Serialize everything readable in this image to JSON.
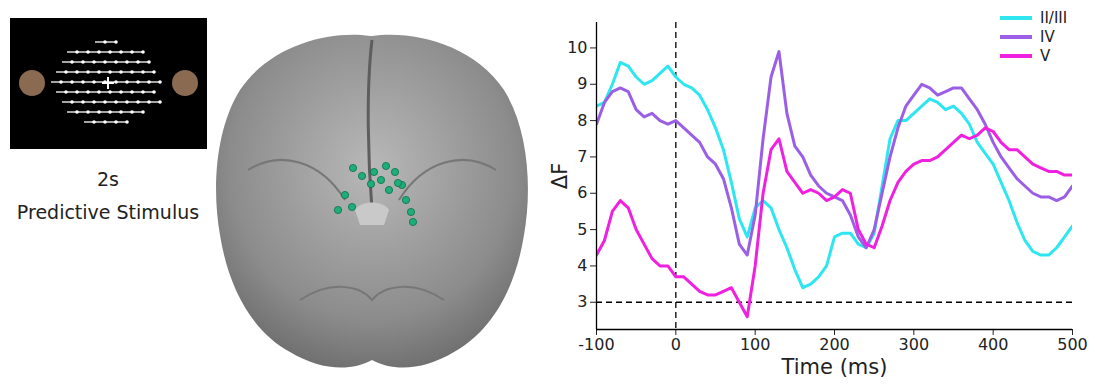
{
  "panels": {
    "stimulus": {
      "caption": [
        "2s",
        "Predictive Stimulus"
      ]
    }
  },
  "chart_data": {
    "type": "line",
    "x_label": "Time (ms)",
    "y_label": "ΔF",
    "x": [
      -100,
      -90,
      -80,
      -70,
      -60,
      -50,
      -40,
      -30,
      -20,
      -10,
      0,
      10,
      20,
      30,
      40,
      50,
      60,
      70,
      80,
      90,
      100,
      110,
      120,
      130,
      140,
      150,
      160,
      170,
      180,
      190,
      200,
      210,
      220,
      230,
      240,
      250,
      260,
      270,
      280,
      290,
      300,
      310,
      320,
      330,
      340,
      350,
      360,
      370,
      380,
      390,
      400,
      410,
      420,
      430,
      440,
      450,
      460,
      470,
      480,
      490,
      500
    ],
    "series": [
      {
        "name": "II/III",
        "color": "#2ee6f0",
        "values": [
          8.4,
          8.5,
          9.0,
          9.6,
          9.5,
          9.2,
          9.0,
          9.1,
          9.3,
          9.5,
          9.2,
          9.0,
          8.9,
          8.7,
          8.3,
          7.8,
          7.2,
          6.3,
          5.3,
          4.8,
          5.6,
          5.8,
          5.6,
          5.0,
          4.5,
          3.9,
          3.4,
          3.5,
          3.7,
          4.0,
          4.8,
          4.9,
          4.9,
          4.6,
          4.5,
          4.9,
          6.2,
          7.5,
          8.0,
          8.0,
          8.2,
          8.4,
          8.6,
          8.5,
          8.3,
          8.4,
          8.2,
          7.9,
          7.4,
          7.1,
          6.8,
          6.3,
          5.8,
          5.2,
          4.7,
          4.4,
          4.3,
          4.3,
          4.5,
          4.8,
          5.1
        ]
      },
      {
        "name": "IV",
        "color": "#9b5fe6",
        "values": [
          7.9,
          8.5,
          8.8,
          8.9,
          8.8,
          8.3,
          8.1,
          8.2,
          8.0,
          7.9,
          8.0,
          7.8,
          7.6,
          7.4,
          7.0,
          6.8,
          6.4,
          5.6,
          4.6,
          4.3,
          5.4,
          7.5,
          9.2,
          9.9,
          8.2,
          7.3,
          7.0,
          6.5,
          6.2,
          6.0,
          5.9,
          5.8,
          5.4,
          4.8,
          4.5,
          5.0,
          6.0,
          7.0,
          7.8,
          8.4,
          8.7,
          9.0,
          8.9,
          8.7,
          8.8,
          8.9,
          8.9,
          8.6,
          8.3,
          7.9,
          7.4,
          7.0,
          6.7,
          6.4,
          6.2,
          6.0,
          5.9,
          5.9,
          5.8,
          5.9,
          6.2
        ]
      },
      {
        "name": "V",
        "color": "#f020e0",
        "values": [
          4.3,
          4.7,
          5.5,
          5.8,
          5.6,
          5.0,
          4.6,
          4.2,
          4.0,
          4.0,
          3.7,
          3.7,
          3.5,
          3.3,
          3.2,
          3.2,
          3.3,
          3.4,
          3.0,
          2.6,
          4.0,
          6.0,
          7.2,
          7.5,
          6.6,
          6.3,
          6.0,
          6.1,
          6.0,
          5.8,
          5.9,
          6.1,
          6.0,
          5.0,
          4.6,
          4.5,
          5.1,
          5.8,
          6.3,
          6.6,
          6.8,
          6.9,
          6.9,
          7.0,
          7.2,
          7.4,
          7.6,
          7.5,
          7.6,
          7.8,
          7.7,
          7.4,
          7.2,
          7.2,
          7.0,
          6.8,
          6.7,
          6.6,
          6.6,
          6.5,
          6.5
        ]
      }
    ],
    "xlim": [
      -100,
      500
    ],
    "xticks": [
      -100,
      0,
      100,
      200,
      300,
      400,
      500
    ],
    "ylim": [
      2.25,
      10.7
    ],
    "yticks": [
      3,
      4,
      5,
      6,
      7,
      8,
      9,
      10
    ],
    "vline": 0,
    "hline": 3,
    "line_style": "solid",
    "legend": "upper right",
    "grid": false
  }
}
